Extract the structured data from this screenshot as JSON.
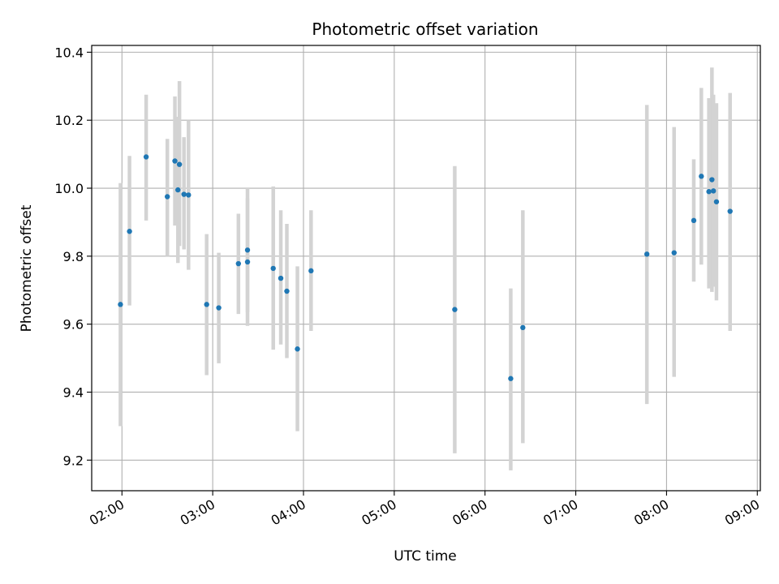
{
  "chart_data": {
    "type": "scatter",
    "title": "Photometric offset variation",
    "xlabel": "UTC time",
    "ylabel": "Photometric offset",
    "x_tick_labels": [
      "02:00",
      "03:00",
      "04:00",
      "05:00",
      "06:00",
      "07:00",
      "08:00",
      "09:00"
    ],
    "y_tick_labels": [
      "9.2",
      "9.4",
      "9.6",
      "9.8",
      "10.0",
      "10.2",
      "10.4"
    ],
    "xlim": [
      "01:40",
      "09:02"
    ],
    "ylim": [
      9.11,
      10.42
    ],
    "grid": true,
    "colors": {
      "point": "#1f77b4",
      "errorbar": "#d3d3d3",
      "grid": "#b0b0b0",
      "axis": "#000000"
    },
    "points": [
      {
        "x": "01:59",
        "y": 9.658,
        "ylow": 9.3,
        "yhigh": 10.015
      },
      {
        "x": "02:05",
        "y": 9.873,
        "ylow": 9.655,
        "yhigh": 10.095
      },
      {
        "x": "02:16",
        "y": 10.092,
        "ylow": 9.905,
        "yhigh": 10.275
      },
      {
        "x": "02:30",
        "y": 9.975,
        "ylow": 9.8,
        "yhigh": 10.145
      },
      {
        "x": "02:35",
        "y": 10.08,
        "ylow": 9.89,
        "yhigh": 10.27
      },
      {
        "x": "02:37",
        "y": 9.995,
        "ylow": 9.78,
        "yhigh": 10.21
      },
      {
        "x": "02:38",
        "y": 10.07,
        "ylow": 9.83,
        "yhigh": 10.315
      },
      {
        "x": "02:41",
        "y": 9.982,
        "ylow": 9.82,
        "yhigh": 10.15
      },
      {
        "x": "02:44",
        "y": 9.98,
        "ylow": 9.76,
        "yhigh": 10.2
      },
      {
        "x": "02:56",
        "y": 9.658,
        "ylow": 9.45,
        "yhigh": 9.865
      },
      {
        "x": "03:04",
        "y": 9.648,
        "ylow": 9.485,
        "yhigh": 9.81
      },
      {
        "x": "03:17",
        "y": 9.778,
        "ylow": 9.63,
        "yhigh": 9.925
      },
      {
        "x": "03:23",
        "y": 9.783,
        "ylow": 9.595,
        "yhigh": 9.97
      },
      {
        "x": "03:23",
        "y": 9.818,
        "ylow": 9.635,
        "yhigh": 10.0
      },
      {
        "x": "03:40",
        "y": 9.764,
        "ylow": 9.525,
        "yhigh": 10.005
      },
      {
        "x": "03:45",
        "y": 9.735,
        "ylow": 9.54,
        "yhigh": 9.935
      },
      {
        "x": "03:49",
        "y": 9.697,
        "ylow": 9.5,
        "yhigh": 9.895
      },
      {
        "x": "03:56",
        "y": 9.527,
        "ylow": 9.285,
        "yhigh": 9.77
      },
      {
        "x": "04:05",
        "y": 9.757,
        "ylow": 9.58,
        "yhigh": 9.935
      },
      {
        "x": "05:40",
        "y": 9.643,
        "ylow": 9.22,
        "yhigh": 10.065
      },
      {
        "x": "06:17",
        "y": 9.44,
        "ylow": 9.17,
        "yhigh": 9.705
      },
      {
        "x": "06:25",
        "y": 9.59,
        "ylow": 9.25,
        "yhigh": 9.935
      },
      {
        "x": "07:47",
        "y": 9.806,
        "ylow": 9.365,
        "yhigh": 10.245
      },
      {
        "x": "08:05",
        "y": 9.81,
        "ylow": 9.445,
        "yhigh": 10.18
      },
      {
        "x": "08:18",
        "y": 9.905,
        "ylow": 9.725,
        "yhigh": 10.085
      },
      {
        "x": "08:23",
        "y": 10.035,
        "ylow": 9.775,
        "yhigh": 10.295
      },
      {
        "x": "08:28",
        "y": 9.99,
        "ylow": 9.705,
        "yhigh": 10.265
      },
      {
        "x": "08:30",
        "y": 10.025,
        "ylow": 9.695,
        "yhigh": 10.355
      },
      {
        "x": "08:31",
        "y": 9.992,
        "ylow": 9.71,
        "yhigh": 10.275
      },
      {
        "x": "08:33",
        "y": 9.96,
        "ylow": 9.67,
        "yhigh": 10.25
      },
      {
        "x": "08:42",
        "y": 9.932,
        "ylow": 9.58,
        "yhigh": 10.28
      }
    ]
  }
}
